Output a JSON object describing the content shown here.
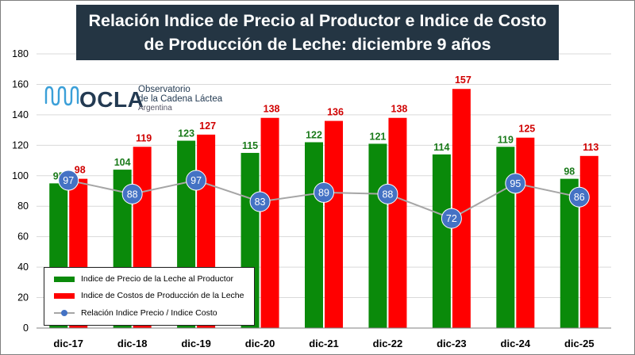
{
  "title_lines": [
    "Relación Indice de Precio al Productor e Indice de Costo",
    "de Producción de Leche:  diciembre 9 años"
  ],
  "logo": {
    "name": "OCLA",
    "subtitle_lines": [
      "Observatorio",
      "de la Cadena Láctea"
    ],
    "country": "Argentina"
  },
  "colors": {
    "price_bar": "#0a8a0a",
    "cost_bar": "#ff0000",
    "price_label": "#1a7a1a",
    "cost_label": "#d00000",
    "ratio_line": "#a6a6a6",
    "ratio_marker": "#4472c4",
    "title_bg": "#243543"
  },
  "legend": {
    "items": [
      {
        "label": "Indice de Precio de la Leche al Productor",
        "type": "bar",
        "color": "#0a8a0a"
      },
      {
        "label": "Indice de Costos de Producción de la Leche",
        "type": "bar",
        "color": "#ff0000"
      },
      {
        "label": "Relación Indice Precio / Indice Costo",
        "type": "line",
        "color": "#a6a6a6"
      }
    ]
  },
  "chart_data": {
    "type": "bar",
    "categories": [
      "dic-17",
      "dic-18",
      "dic-19",
      "dic-20",
      "dic-21",
      "dic-22",
      "dic-23",
      "dic-24",
      "dic-25"
    ],
    "series": [
      {
        "name": "Indice de Precio de la Leche al Productor",
        "type": "bar",
        "values": [
          95,
          104,
          123,
          115,
          122,
          121,
          114,
          119,
          98
        ]
      },
      {
        "name": "Indice de Costos de Producción de la Leche",
        "type": "bar",
        "values": [
          98,
          119,
          127,
          138,
          136,
          138,
          157,
          125,
          113
        ]
      },
      {
        "name": "Relación Indice Precio / Indice Costo",
        "type": "line",
        "values": [
          97,
          88,
          97,
          83,
          89,
          88,
          72,
          95,
          86
        ]
      }
    ],
    "ylim": [
      0,
      180
    ],
    "yticks": [
      0,
      20,
      40,
      60,
      80,
      100,
      120,
      140,
      160,
      180
    ],
    "grid": true,
    "legend_position": "bottom-left"
  }
}
